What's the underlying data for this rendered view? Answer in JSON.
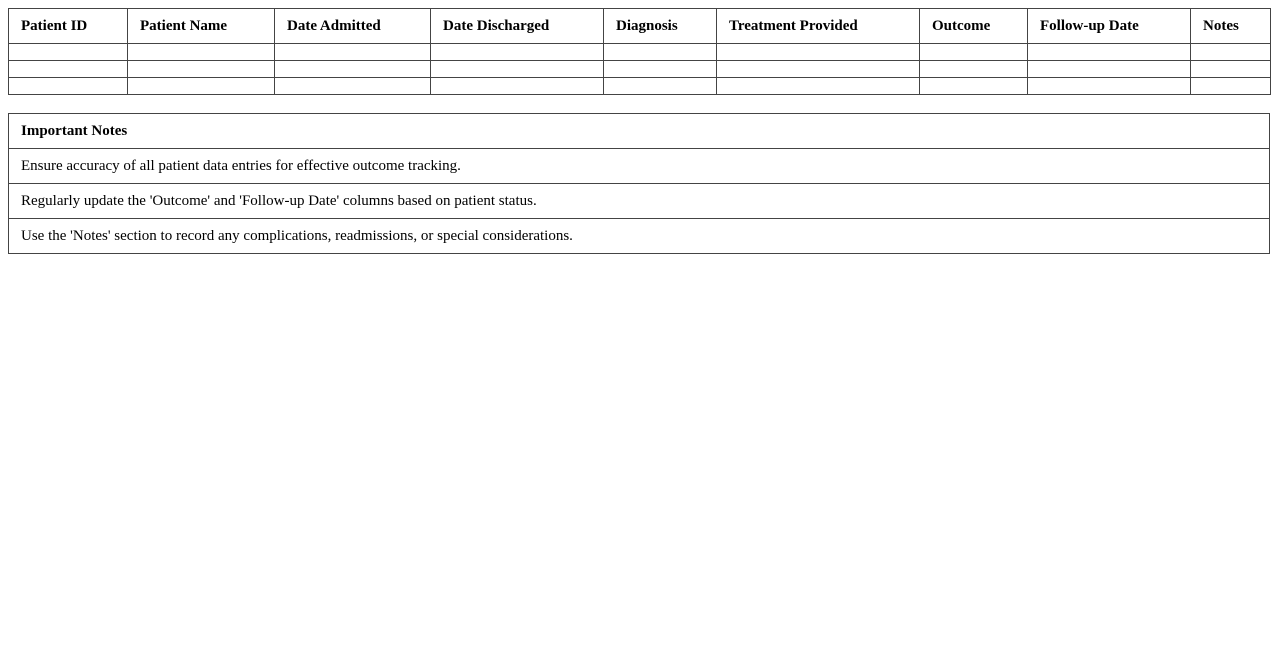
{
  "table": {
    "headers": [
      "Patient ID",
      "Patient Name",
      "Date Admitted",
      "Date Discharged",
      "Diagnosis",
      "Treatment Provided",
      "Outcome",
      "Follow-up Date",
      "Notes"
    ],
    "rows": [
      [
        "",
        "",
        "",
        "",
        "",
        "",
        "",
        "",
        ""
      ],
      [
        "",
        "",
        "",
        "",
        "",
        "",
        "",
        "",
        ""
      ],
      [
        "",
        "",
        "",
        "",
        "",
        "",
        "",
        "",
        ""
      ]
    ]
  },
  "notes": {
    "title": "Important Notes",
    "items": [
      "Ensure accuracy of all patient data entries for effective outcome tracking.",
      "Regularly update the 'Outcome' and 'Follow-up Date' columns based on patient status.",
      "Use the 'Notes' section to record any complications, readmissions, or special considerations."
    ]
  }
}
